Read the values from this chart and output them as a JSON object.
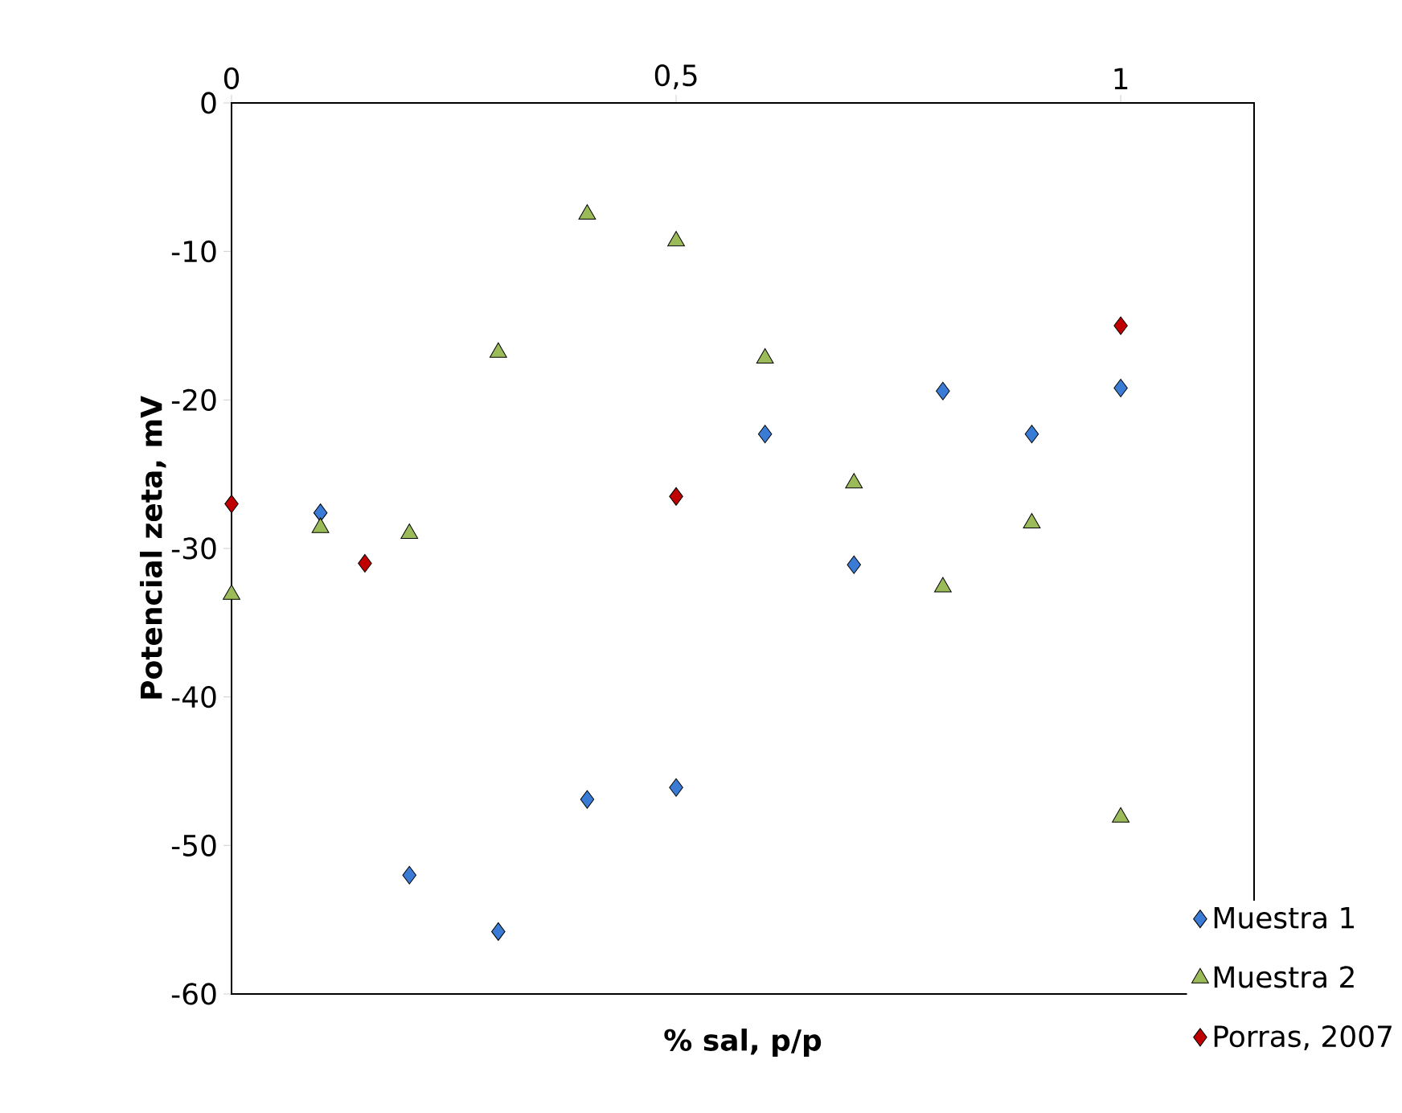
{
  "chart_data": {
    "type": "scatter",
    "xlabel": "% sal, p/p",
    "ylabel": "Potencial zeta, mV",
    "xlim": [
      0,
      1.15
    ],
    "ylim": [
      -60,
      0
    ],
    "xticks": [
      0,
      {
        "value": 0.5,
        "label": "0,5"
      },
      1
    ],
    "yticks": [
      0,
      -10,
      -20,
      -30,
      -40,
      -50,
      -60
    ],
    "grid": false,
    "legend": "bottom right",
    "series": [
      {
        "name": "Muestra 1",
        "color": "#3a7bd5",
        "marker": "diamond",
        "x": [
          0.1,
          0.2,
          0.3,
          0.4,
          0.5,
          0.6,
          0.7,
          0.8,
          0.9,
          1
        ],
        "values": [
          -27.6,
          -52.0,
          -55.8,
          -46.9,
          -46.1,
          -22.3,
          -31.1,
          -19.4,
          -22.3,
          -19.2
        ]
      },
      {
        "name": "Muestra 2",
        "color": "#9bbb59",
        "marker": "triangle",
        "x": [
          0,
          0.1,
          0.2,
          0.3,
          0.4,
          0.5,
          0.6,
          0.7,
          0.8,
          0.9,
          1
        ],
        "values": [
          -33.1,
          -28.6,
          -29.0,
          -16.8,
          -7.5,
          -9.3,
          -17.2,
          -25.6,
          -32.6,
          -28.3,
          -48.1
        ]
      },
      {
        "name": "Porras, 2007",
        "color": "#c00000",
        "marker": "diamond",
        "x": [
          0,
          0.15,
          0.5,
          1
        ],
        "values": [
          -27.0,
          -31.0,
          -26.5,
          -15.0
        ]
      }
    ]
  }
}
